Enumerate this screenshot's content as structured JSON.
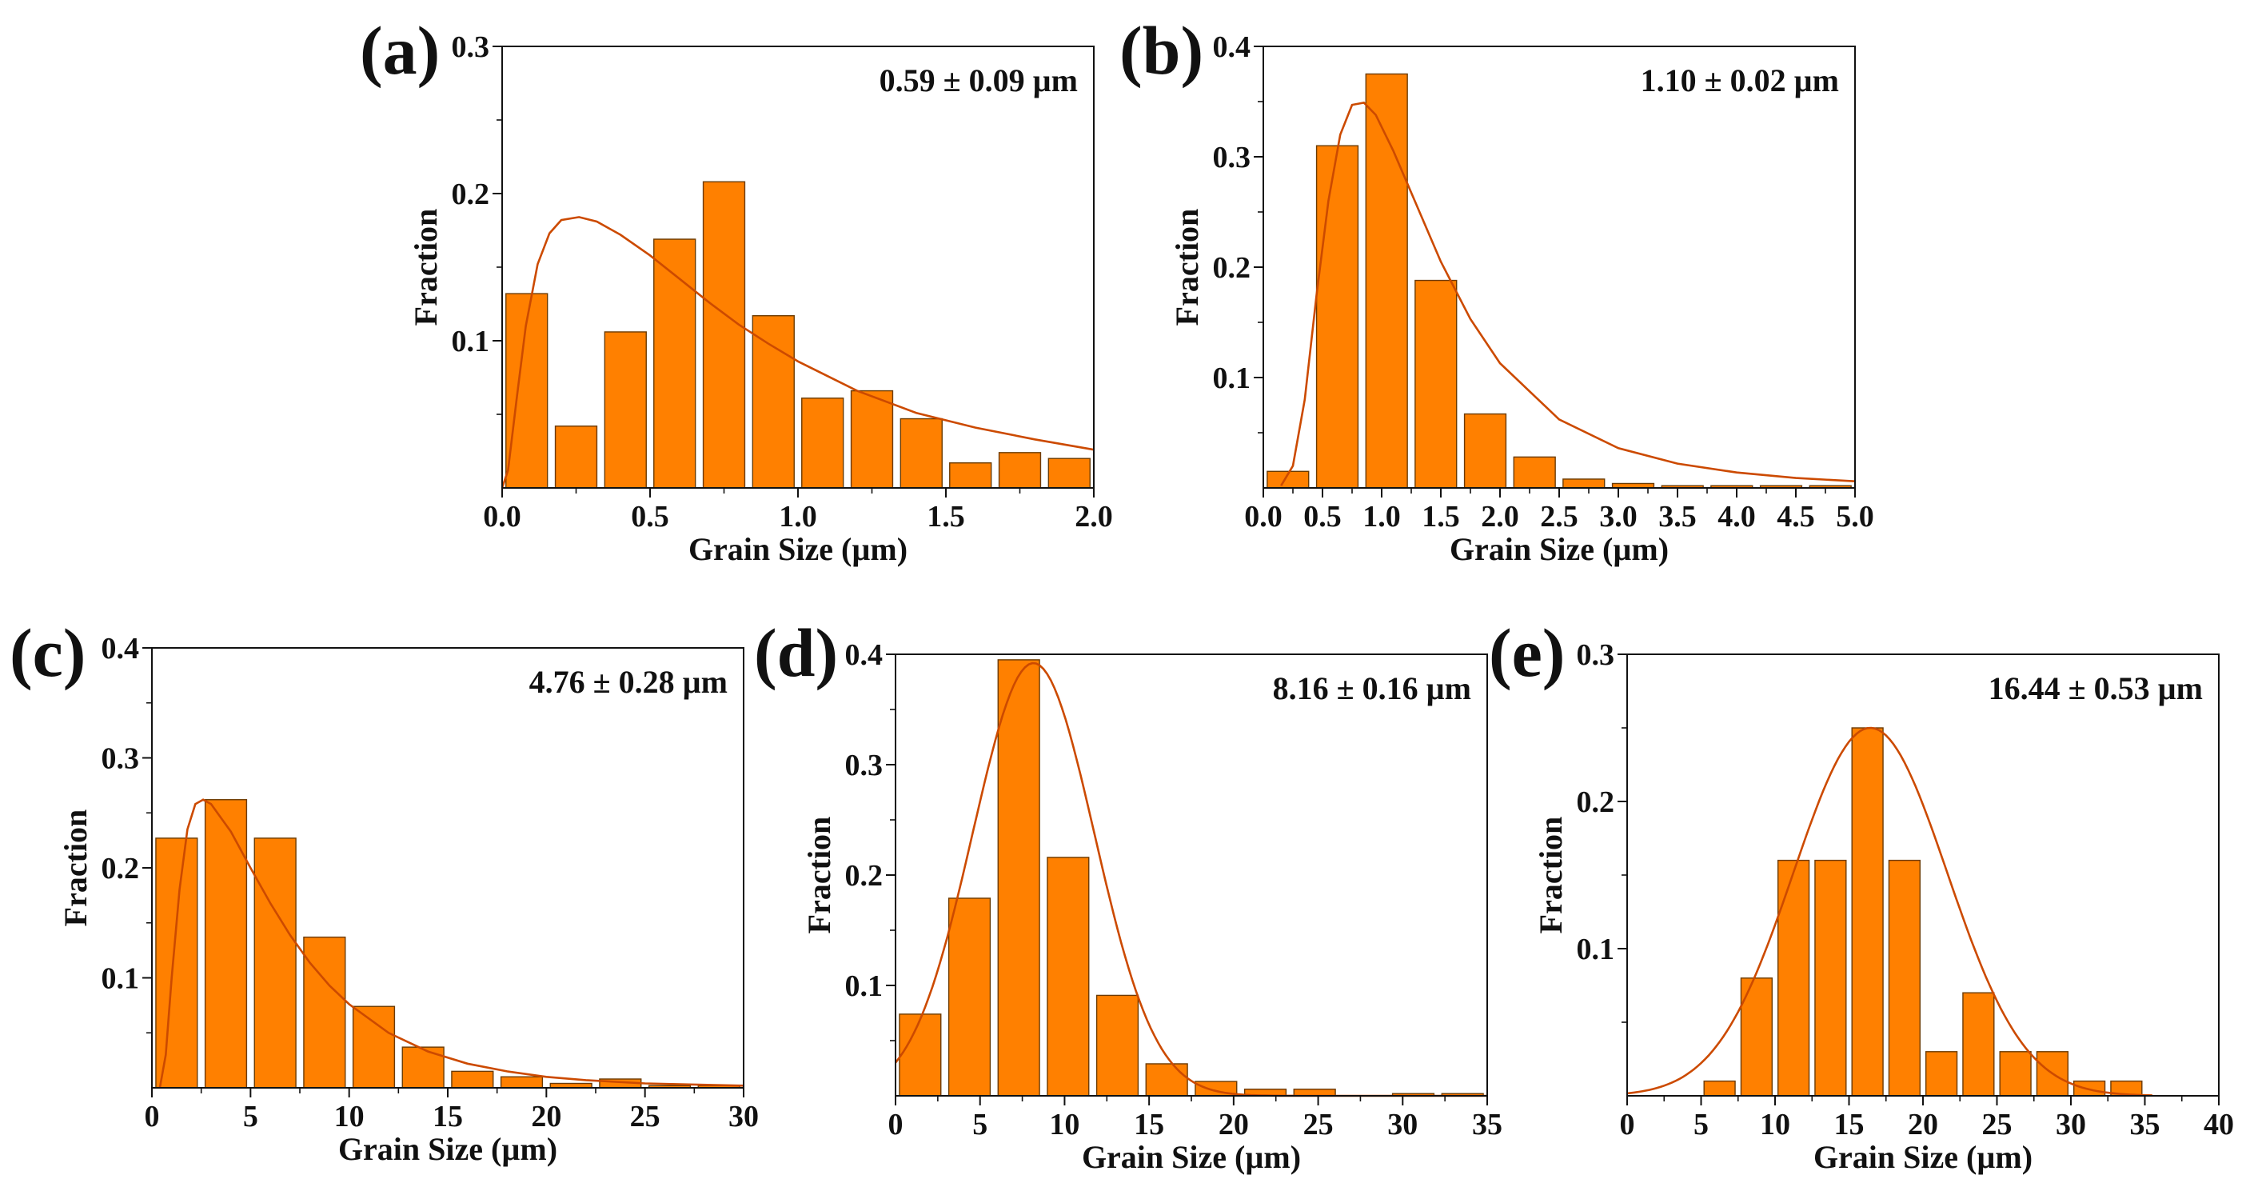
{
  "colors": {
    "bar_fill": "#ff8000",
    "bar_edge": "#6b3a00",
    "fit_curve": "#cc4a00",
    "axis": "#111111"
  },
  "chart_data": [
    {
      "panel": "(a)",
      "type": "bar",
      "annotation": "0.59 ± 0.09 µm",
      "xlabel": "Grain Size (µm)",
      "ylabel": "Fraction",
      "xlim": [
        0,
        2.0
      ],
      "ylim": [
        0,
        0.3
      ],
      "xticks": [
        0,
        0.5,
        1.0,
        1.5,
        2.0
      ],
      "xtick_labels": [
        "0.0",
        "0.5",
        "1.0",
        "1.5",
        "2.0"
      ],
      "yticks": [
        0.1,
        0.2,
        0.3
      ],
      "ytick_labels": [
        "0.1",
        "0.2",
        "0.3"
      ],
      "bin_width": 0.167,
      "bar_centers": [
        0.083,
        0.25,
        0.417,
        0.583,
        0.75,
        0.917,
        1.083,
        1.25,
        1.417,
        1.583,
        1.75,
        1.917
      ],
      "values": [
        0.132,
        0.042,
        0.106,
        0.169,
        0.208,
        0.117,
        0.061,
        0.066,
        0.047,
        0.017,
        0.024,
        0.02
      ],
      "fit": {
        "type": "lognormal",
        "peak_x": 0.26,
        "peak_y": 0.184,
        "points": [
          [
            0,
            0
          ],
          [
            0.02,
            0.012
          ],
          [
            0.05,
            0.062
          ],
          [
            0.08,
            0.11
          ],
          [
            0.12,
            0.152
          ],
          [
            0.16,
            0.173
          ],
          [
            0.2,
            0.182
          ],
          [
            0.26,
            0.184
          ],
          [
            0.32,
            0.181
          ],
          [
            0.4,
            0.172
          ],
          [
            0.5,
            0.158
          ],
          [
            0.6,
            0.142
          ],
          [
            0.7,
            0.126
          ],
          [
            0.8,
            0.111
          ],
          [
            0.9,
            0.098
          ],
          [
            1.0,
            0.086
          ],
          [
            1.2,
            0.066
          ],
          [
            1.4,
            0.051
          ],
          [
            1.6,
            0.041
          ],
          [
            1.8,
            0.033
          ],
          [
            2.0,
            0.026
          ]
        ]
      }
    },
    {
      "panel": "(b)",
      "type": "bar",
      "annotation": "1.10 ± 0.02 µm",
      "xlabel": "Grain Size (µm)",
      "ylabel": "Fraction",
      "xlim": [
        0,
        5.0
      ],
      "ylim": [
        0,
        0.4
      ],
      "xticks": [
        0,
        0.5,
        1.0,
        1.5,
        2.0,
        2.5,
        3.0,
        3.5,
        4.0,
        4.5,
        5.0
      ],
      "xtick_labels": [
        "0.0",
        "0.5",
        "1.0",
        "1.5",
        "2.0",
        "2.5",
        "3.0",
        "3.5",
        "4.0",
        "4.5",
        "5.0"
      ],
      "yticks": [
        0.1,
        0.2,
        0.3,
        0.4
      ],
      "ytick_labels": [
        "0.1",
        "0.2",
        "0.3",
        "0.4"
      ],
      "bin_width": 0.417,
      "bar_centers": [
        0.208,
        0.625,
        1.042,
        1.458,
        1.875,
        2.292,
        2.708,
        3.125,
        3.542,
        3.958,
        4.375,
        4.792
      ],
      "values": [
        0.015,
        0.31,
        0.375,
        0.188,
        0.067,
        0.028,
        0.008,
        0.004,
        0.002,
        0.002,
        0.002,
        0.002
      ],
      "fit": {
        "type": "lognormal",
        "peak_x": 0.8,
        "peak_y": 0.35,
        "points": [
          [
            0.15,
            0.002
          ],
          [
            0.25,
            0.02
          ],
          [
            0.35,
            0.08
          ],
          [
            0.45,
            0.175
          ],
          [
            0.55,
            0.26
          ],
          [
            0.65,
            0.32
          ],
          [
            0.75,
            0.347
          ],
          [
            0.85,
            0.349
          ],
          [
            0.95,
            0.338
          ],
          [
            1.1,
            0.305
          ],
          [
            1.3,
            0.255
          ],
          [
            1.5,
            0.205
          ],
          [
            1.75,
            0.153
          ],
          [
            2.0,
            0.113
          ],
          [
            2.5,
            0.062
          ],
          [
            3.0,
            0.036
          ],
          [
            3.5,
            0.022
          ],
          [
            4.0,
            0.014
          ],
          [
            4.5,
            0.009
          ],
          [
            5.0,
            0.006
          ]
        ]
      }
    },
    {
      "panel": "(c)",
      "type": "bar",
      "annotation": "4.76 ± 0.28 µm",
      "xlabel": "Grain Size (µm)",
      "ylabel": "Fraction",
      "xlim": [
        0,
        30
      ],
      "ylim": [
        0,
        0.4
      ],
      "xticks": [
        0,
        5,
        10,
        15,
        20,
        25,
        30
      ],
      "xtick_labels": [
        "0",
        "5",
        "10",
        "15",
        "20",
        "25",
        "30"
      ],
      "yticks": [
        0.1,
        0.2,
        0.3,
        0.4
      ],
      "ytick_labels": [
        "0.1",
        "0.2",
        "0.3",
        "0.4"
      ],
      "bin_width": 2.5,
      "bar_centers": [
        1.25,
        3.75,
        6.25,
        8.75,
        11.25,
        13.75,
        16.25,
        18.75,
        21.25,
        23.75,
        26.25,
        28.75
      ],
      "values": [
        0.227,
        0.262,
        0.227,
        0.137,
        0.074,
        0.037,
        0.015,
        0.01,
        0.004,
        0.008,
        0.002,
        0.002
      ],
      "fit": {
        "type": "lognormal",
        "peak_x": 2.5,
        "peak_y": 0.262,
        "points": [
          [
            0.4,
            0.0
          ],
          [
            0.7,
            0.03
          ],
          [
            1.0,
            0.1
          ],
          [
            1.4,
            0.18
          ],
          [
            1.8,
            0.235
          ],
          [
            2.2,
            0.258
          ],
          [
            2.6,
            0.262
          ],
          [
            3.0,
            0.258
          ],
          [
            4,
            0.233
          ],
          [
            5,
            0.2
          ],
          [
            6,
            0.168
          ],
          [
            7,
            0.139
          ],
          [
            8,
            0.114
          ],
          [
            9,
            0.093
          ],
          [
            10,
            0.076
          ],
          [
            12,
            0.05
          ],
          [
            14,
            0.033
          ],
          [
            16,
            0.022
          ],
          [
            18,
            0.015
          ],
          [
            20,
            0.01
          ],
          [
            22,
            0.007
          ],
          [
            25,
            0.004
          ],
          [
            30,
            0.002
          ]
        ]
      }
    },
    {
      "panel": "(d)",
      "type": "bar",
      "annotation": "8.16 ± 0.16 µm",
      "xlabel": "Grain Size (µm)",
      "ylabel": "Fraction",
      "xlim": [
        0,
        35
      ],
      "ylim": [
        0,
        0.4
      ],
      "xticks": [
        0,
        5,
        10,
        15,
        20,
        25,
        30,
        35
      ],
      "xtick_labels": [
        "0",
        "5",
        "10",
        "15",
        "20",
        "25",
        "30",
        "35"
      ],
      "yticks": [
        0.1,
        0.2,
        0.3,
        0.4
      ],
      "ytick_labels": [
        "0.1",
        "0.2",
        "0.3",
        "0.4"
      ],
      "bin_width": 2.917,
      "bar_centers": [
        1.458,
        4.375,
        7.292,
        10.208,
        13.125,
        16.042,
        18.958,
        21.875,
        24.792,
        27.708,
        30.625,
        33.542
      ],
      "values": [
        0.074,
        0.179,
        0.395,
        0.216,
        0.091,
        0.029,
        0.013,
        0.006,
        0.006,
        0.0,
        0.002,
        0.002
      ],
      "fit": {
        "type": "gaussian",
        "mean": 8.16,
        "peak_y": 0.392,
        "sigma": 3.6
      }
    },
    {
      "panel": "(e)",
      "type": "bar",
      "annotation": "16.44 ± 0.53 µm",
      "xlabel": "Grain Size (µm)",
      "ylabel": "Fraction",
      "xlim": [
        0,
        40
      ],
      "ylim": [
        0,
        0.3
      ],
      "xticks": [
        0,
        5,
        10,
        15,
        20,
        25,
        30,
        35,
        40
      ],
      "xtick_labels": [
        "0",
        "5",
        "10",
        "15",
        "20",
        "25",
        "30",
        "35",
        "40"
      ],
      "yticks": [
        0.1,
        0.2,
        0.3
      ],
      "ytick_labels": [
        "0.1",
        "0.2",
        "0.3"
      ],
      "bin_width": 2.5,
      "bar_centers": [
        6.25,
        8.75,
        11.25,
        13.75,
        16.25,
        18.75,
        21.25,
        23.75,
        26.25,
        28.75,
        31.25,
        33.75
      ],
      "values": [
        0.01,
        0.08,
        0.16,
        0.16,
        0.25,
        0.16,
        0.03,
        0.07,
        0.03,
        0.03,
        0.01,
        0.01
      ],
      "fit": {
        "type": "gaussian",
        "mean": 16.44,
        "peak_y": 0.25,
        "sigma": 5.2
      }
    }
  ]
}
